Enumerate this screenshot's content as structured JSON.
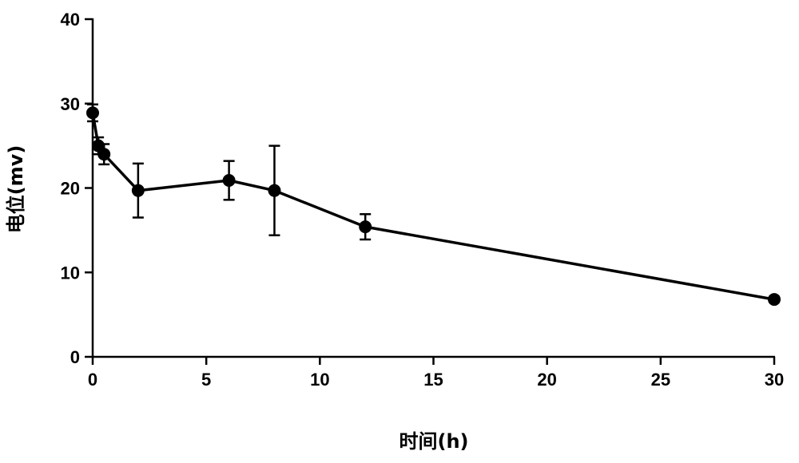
{
  "chart_data": {
    "type": "line",
    "xlabel": "时间(h)",
    "ylabel": "电位(mv)",
    "xlim": [
      0,
      30
    ],
    "ylim": [
      0,
      40
    ],
    "x_ticks": [
      0,
      5,
      10,
      15,
      20,
      25,
      30
    ],
    "y_ticks": [
      0,
      10,
      20,
      30,
      40
    ],
    "grid": false,
    "series": [
      {
        "x": [
          0,
          0.25,
          0.5,
          2,
          6,
          8,
          12,
          30
        ],
        "y": [
          28.9,
          25.0,
          24.0,
          19.7,
          20.9,
          19.7,
          15.4,
          6.8
        ],
        "error": [
          1.0,
          1.0,
          1.2,
          3.2,
          2.3,
          5.3,
          1.5,
          0.3
        ],
        "color": "#000000",
        "marker": "circle"
      }
    ]
  }
}
